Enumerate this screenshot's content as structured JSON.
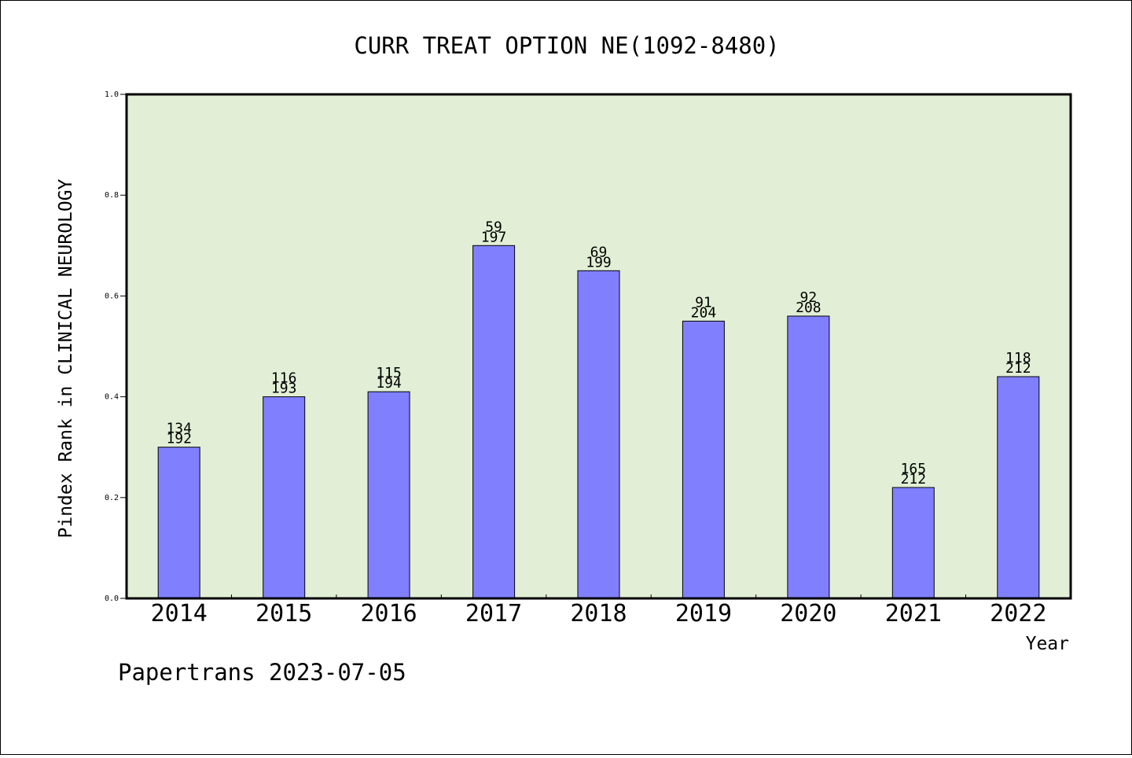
{
  "chart_data": {
    "type": "bar",
    "title": "CURR TREAT OPTION NE(1092-8480)",
    "xlabel": "Year",
    "ylabel": "Pindex Rank in CLINICAL NEUROLOGY",
    "ylim": [
      0,
      1.0
    ],
    "yticks": [
      "0.0",
      "0.2",
      "0.4",
      "0.6",
      "0.8",
      "1.0"
    ],
    "categories": [
      "2014",
      "2015",
      "2016",
      "2017",
      "2018",
      "2019",
      "2020",
      "2021",
      "2022"
    ],
    "values": [
      0.3,
      0.4,
      0.41,
      0.7,
      0.65,
      0.55,
      0.56,
      0.22,
      0.44
    ],
    "label_top": [
      "134",
      "116",
      "115",
      "59",
      "69",
      "91",
      "92",
      "165",
      "118"
    ],
    "label_bottom": [
      "192",
      "193",
      "194",
      "197",
      "199",
      "204",
      "208",
      "212",
      "212"
    ],
    "colors": {
      "bar": "#8080ff",
      "plot_bg": "#e2efd6"
    },
    "grid": false,
    "footer": "Papertrans 2023-07-05"
  }
}
